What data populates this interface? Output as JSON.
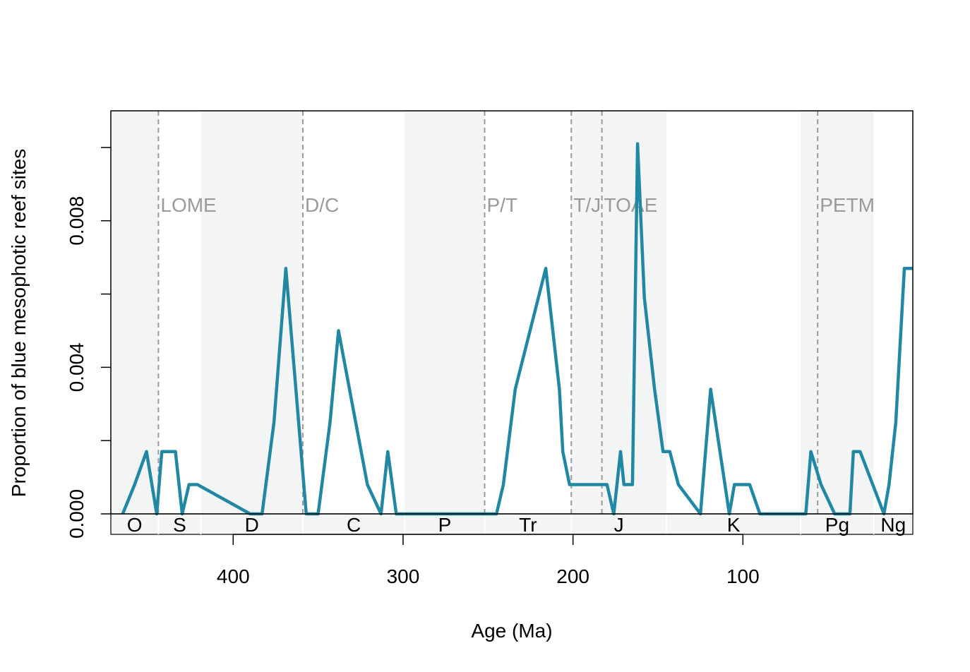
{
  "chart_data": {
    "type": "line",
    "title": "",
    "xlabel": "Age (Ma)",
    "ylabel": "Proportion of blue mesophotic reef sites",
    "xlim": [
      472,
      0
    ],
    "ylim": [
      0,
      0.011
    ],
    "x_ticks": [
      400,
      300,
      200,
      100
    ],
    "x_tick_labels": [
      "400",
      "300",
      "200",
      "100"
    ],
    "y_ticks": [
      0.0,
      0.002,
      0.004,
      0.006,
      0.008,
      0.01
    ],
    "y_tick_labels": [
      "0.000",
      "",
      "0.004",
      "",
      "0.008",
      ""
    ],
    "grid": false,
    "legend": "none",
    "colors": {
      "series": "#2188A4",
      "shade": "#F3F5F5",
      "event_line": "#9A9A9A",
      "event_text": "#9A9A9A",
      "axis": "#000000"
    },
    "shaded_intervals": [
      {
        "start": 472,
        "end": 444
      },
      {
        "start": 419,
        "end": 359
      },
      {
        "start": 299,
        "end": 252
      },
      {
        "start": 201,
        "end": 145
      },
      {
        "start": 66,
        "end": 23
      }
    ],
    "periods": [
      {
        "label": "O",
        "start": 472,
        "end": 444
      },
      {
        "label": "S",
        "start": 444,
        "end": 419
      },
      {
        "label": "D",
        "start": 419,
        "end": 359
      },
      {
        "label": "C",
        "start": 359,
        "end": 299
      },
      {
        "label": "P",
        "start": 299,
        "end": 252
      },
      {
        "label": "Tr",
        "start": 252,
        "end": 201
      },
      {
        "label": "J",
        "start": 201,
        "end": 145
      },
      {
        "label": "K",
        "start": 145,
        "end": 66
      },
      {
        "label": "Pg",
        "start": 66,
        "end": 23
      },
      {
        "label": "Ng",
        "start": 23,
        "end": 0
      }
    ],
    "events": [
      {
        "label": "LOME",
        "age": 444
      },
      {
        "label": "D/C",
        "age": 359
      },
      {
        "label": "P/T",
        "age": 252
      },
      {
        "label": "T/J",
        "age": 201
      },
      {
        "label": "TOAE",
        "age": 183
      },
      {
        "label": "PETM",
        "age": 56
      }
    ],
    "series": [
      {
        "x": [
          465,
          458,
          451,
          445,
          442,
          438,
          434,
          430,
          426,
          421,
          390,
          383,
          376,
          369,
          357,
          350,
          343,
          338,
          321,
          313,
          309,
          304,
          300,
          245,
          241,
          234,
          216,
          208,
          206,
          202,
          180,
          176,
          172,
          170,
          168,
          165,
          162,
          158,
          152,
          147,
          143,
          138,
          125,
          119,
          108,
          105,
          101,
          96,
          90,
          86,
          63,
          60,
          54,
          46,
          37,
          35,
          31,
          17,
          14,
          10,
          5,
          1,
          0
        ],
        "y": [
          0.0,
          0.0008,
          0.0017,
          0.0,
          0.0017,
          0.0017,
          0.0017,
          0.0,
          0.0008,
          0.0008,
          0.0,
          0.0,
          0.0025,
          0.0067,
          0.0,
          0.0,
          0.0025,
          0.005,
          0.0008,
          0.0,
          0.0017,
          0.0,
          0.0,
          0.0,
          0.0008,
          0.0034,
          0.0067,
          0.0034,
          0.0017,
          0.0008,
          0.0008,
          0.0,
          0.0017,
          0.0008,
          0.0008,
          0.0008,
          0.0101,
          0.0059,
          0.0034,
          0.0017,
          0.0017,
          0.0008,
          0.0,
          0.0034,
          0.0,
          0.0008,
          0.0008,
          0.0008,
          0.0,
          0.0,
          0.0,
          0.0017,
          0.0008,
          0.0,
          0.0,
          0.0017,
          0.0017,
          0.0,
          0.0008,
          0.0025,
          0.0067,
          0.0067,
          0.0067
        ]
      }
    ]
  }
}
